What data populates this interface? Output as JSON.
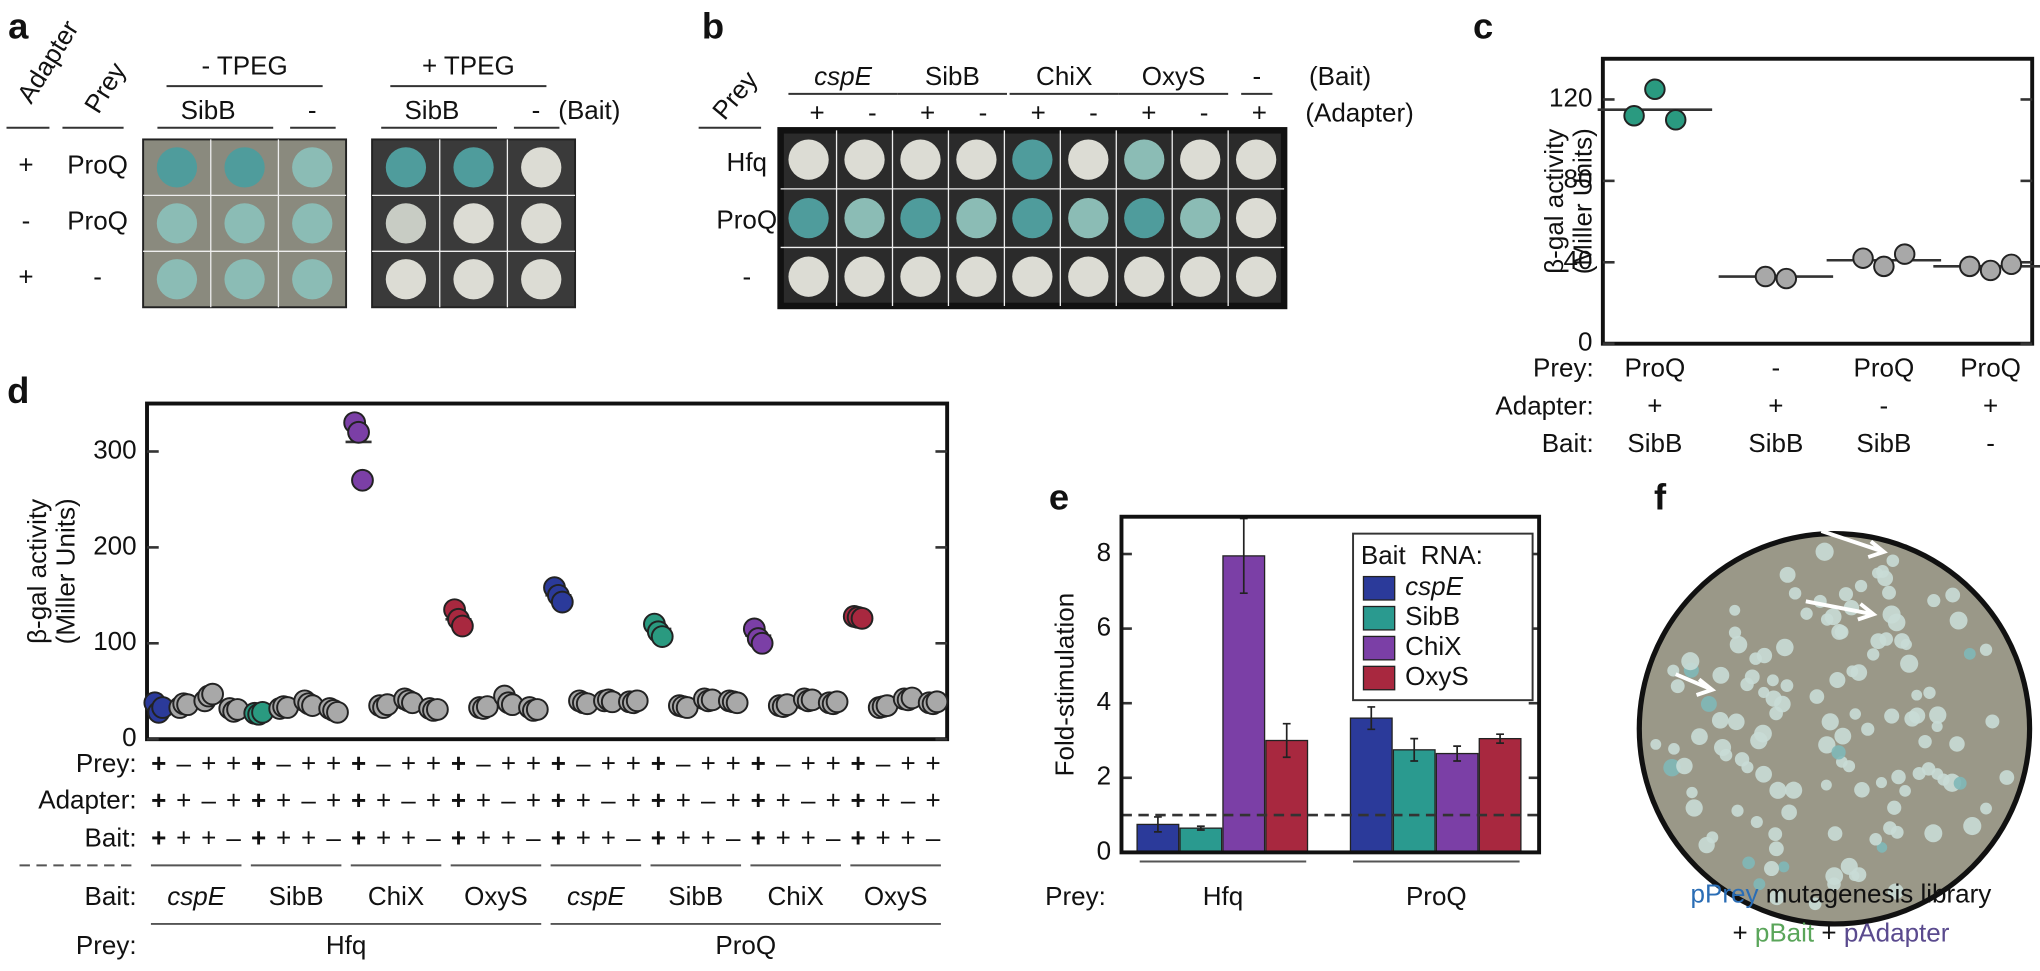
{
  "panel_labels": [
    "a",
    "b",
    "c",
    "d",
    "e",
    "f"
  ],
  "panel_a": {
    "adapter_label": "Adapter",
    "prey_label": "Prey",
    "plates": [
      {
        "title": "- TPEG",
        "baits": [
          "SibB",
          "-"
        ]
      },
      {
        "title": "+ TPEG",
        "baits": [
          "SibB",
          "-"
        ]
      }
    ],
    "bait_label": "(Bait)",
    "rows": [
      {
        "adapter": "+",
        "prey": "ProQ"
      },
      {
        "adapter": "-",
        "prey": "ProQ"
      },
      {
        "adapter": "+",
        "prey": "-"
      }
    ]
  },
  "panel_b": {
    "prey_label": "Prey",
    "baits": [
      "cspE",
      "SibB",
      "ChiX",
      "OxyS",
      "-"
    ],
    "bait_label": "(Bait)",
    "adapters": [
      "+",
      "-",
      "+",
      "-",
      "+",
      "-",
      "+",
      "-",
      "+"
    ],
    "adapter_label": "(Adapter)",
    "rows": [
      "Hfq",
      "ProQ",
      "-"
    ]
  },
  "chart_data": [
    {
      "type": "dot",
      "y_label": "β-gal activity",
      "y_label_2": "(Miller Units)",
      "ylim": [
        0,
        140
      ],
      "yticks": [
        0,
        40,
        80,
        120
      ],
      "row_labels": [
        "Prey:",
        "Adapter:",
        "Bait:"
      ],
      "conditions": [
        [
          "ProQ",
          "+",
          "SibB"
        ],
        [
          "-",
          "+",
          "SibB"
        ],
        [
          "ProQ",
          "-",
          "SibB"
        ],
        [
          "ProQ",
          "+",
          "-"
        ]
      ],
      "groups": [
        {
          "color": "#2a9a80",
          "values": [
            112,
            125,
            110
          ],
          "mean": 115
        },
        {
          "color": "#a8a8a8",
          "values": [
            33,
            32
          ],
          "mean": 33
        },
        {
          "color": "#a8a8a8",
          "values": [
            42,
            38,
            44
          ],
          "mean": 41
        },
        {
          "color": "#a8a8a8",
          "values": [
            38,
            36,
            39
          ],
          "mean": 38
        }
      ]
    },
    {
      "type": "dot",
      "y_label": "β-gal activity",
      "y_label_2": "(Miller Units)",
      "ylim": [
        0,
        350
      ],
      "yticks": [
        0,
        100,
        200,
        300
      ],
      "row_labels": [
        "Prey:",
        "Adapter:",
        "Bait:"
      ],
      "signs": [
        [
          "+",
          "–",
          "+",
          "+",
          "+",
          "–",
          "+",
          "+",
          "+",
          "–",
          "+",
          "+",
          "+",
          "–",
          "+",
          "+",
          "+",
          "–",
          "+",
          "+",
          "+",
          "–",
          "+",
          "+",
          "+",
          "–",
          "+",
          "+",
          "+",
          "–",
          "+",
          "+"
        ],
        [
          "+",
          "+",
          "–",
          "+",
          "+",
          "+",
          "–",
          "+",
          "+",
          "+",
          "–",
          "+",
          "+",
          "+",
          "–",
          "+",
          "+",
          "+",
          "–",
          "+",
          "+",
          "+",
          "–",
          "+",
          "+",
          "+",
          "–",
          "+",
          "+",
          "+",
          "–",
          "+"
        ],
        [
          "+",
          "+",
          "+",
          "–",
          "+",
          "+",
          "+",
          "–",
          "+",
          "+",
          "+",
          "–",
          "+",
          "+",
          "+",
          "–",
          "+",
          "+",
          "+",
          "–",
          "+",
          "+",
          "+",
          "–",
          "+",
          "+",
          "+",
          "–",
          "+",
          "+",
          "+",
          "–"
        ]
      ],
      "bait_row_label": "Bait:",
      "prey_row_label": "Prey:",
      "preys": [
        "Hfq",
        "ProQ"
      ],
      "groups": [
        {
          "bait": "cspE",
          "color": "#2b3a9a",
          "columns": [
            {
              "values": [
                38,
                28,
                33
              ],
              "mean": 33
            },
            {
              "values": [
                33,
                37,
                36
              ],
              "mean": 35
            },
            {
              "values": [
                40,
                45,
                47
              ],
              "mean": 44
            },
            {
              "values": [
                32,
                29,
                31
              ],
              "mean": 31
            }
          ]
        },
        {
          "bait": "SibB",
          "color": "#2a9a80",
          "columns": [
            {
              "values": [
                27,
                26,
                28
              ],
              "mean": 27
            },
            {
              "values": [
                32,
                34,
                33
              ],
              "mean": 33
            },
            {
              "values": [
                40,
                37,
                35
              ],
              "mean": 37
            },
            {
              "values": [
                32,
                30,
                28
              ],
              "mean": 30
            }
          ]
        },
        {
          "bait": "ChiX",
          "color": "#7b3fa6",
          "columns": [
            {
              "values": [
                330,
                320,
                270
              ],
              "mean": 310
            },
            {
              "values": [
                35,
                33,
                36
              ],
              "mean": 35
            },
            {
              "values": [
                42,
                40,
                38
              ],
              "mean": 40
            },
            {
              "values": [
                32,
                30,
                31
              ],
              "mean": 31
            }
          ]
        },
        {
          "bait": "OxyS",
          "color": "#a8283f",
          "columns": [
            {
              "values": [
                135,
                125,
                118
              ],
              "mean": 125
            },
            {
              "values": [
                33,
                32,
                34
              ],
              "mean": 33
            },
            {
              "values": [
                45,
                38,
                36
              ],
              "mean": 40
            },
            {
              "values": [
                33,
                30,
                31
              ],
              "mean": 31
            }
          ]
        },
        {
          "bait": "cspE",
          "color": "#2b3a9a",
          "columns": [
            {
              "values": [
                158,
                150,
                143
              ],
              "mean": 150
            },
            {
              "values": [
                40,
                38,
                37
              ],
              "mean": 38
            },
            {
              "values": [
                40,
                41,
                39
              ],
              "mean": 40
            },
            {
              "values": [
                39,
                38,
                40
              ],
              "mean": 39
            }
          ]
        },
        {
          "bait": "SibB",
          "color": "#2a9a80",
          "columns": [
            {
              "values": [
                120,
                112,
                107
              ],
              "mean": 115
            },
            {
              "values": [
                35,
                34,
                33
              ],
              "mean": 34
            },
            {
              "values": [
                42,
                40,
                41
              ],
              "mean": 41
            },
            {
              "values": [
                40,
                39,
                38
              ],
              "mean": 39
            }
          ]
        },
        {
          "bait": "ChiX",
          "color": "#7b3fa6",
          "columns": [
            {
              "values": [
                115,
                105,
                100
              ],
              "mean": 108
            },
            {
              "values": [
                35,
                34,
                36
              ],
              "mean": 35
            },
            {
              "values": [
                42,
                40,
                41
              ],
              "mean": 41
            },
            {
              "values": [
                38,
                37,
                39
              ],
              "mean": 38
            }
          ]
        },
        {
          "bait": "OxyS",
          "color": "#a8283f",
          "columns": [
            {
              "values": [
                128,
                127,
                126
              ],
              "mean": 127
            },
            {
              "values": [
                33,
                34,
                35
              ],
              "mean": 34
            },
            {
              "values": [
                42,
                41,
                43
              ],
              "mean": 42
            },
            {
              "values": [
                38,
                37,
                39
              ],
              "mean": 38
            }
          ]
        }
      ]
    },
    {
      "type": "bar",
      "y_label": "Fold-stimulation",
      "x_label": "Prey:",
      "categories": [
        "Hfq",
        "ProQ"
      ],
      "ylim": [
        0,
        9
      ],
      "yticks": [
        0,
        2,
        4,
        6,
        8
      ],
      "reference_line": 1,
      "legend_title_1": "Bait",
      "legend_title_2": "RNA:",
      "series": [
        {
          "name": "cspE",
          "color": "#2b3a9a",
          "values": [
            0.75,
            3.6
          ],
          "errors": [
            0.2,
            0.3
          ]
        },
        {
          "name": "SibB",
          "color": "#2a9a8f",
          "values": [
            0.65,
            2.75
          ],
          "errors": [
            0.05,
            0.3
          ]
        },
        {
          "name": "ChiX",
          "color": "#7b3fa6",
          "values": [
            7.95,
            2.65
          ],
          "errors": [
            1.0,
            0.2
          ]
        },
        {
          "name": "OxyS",
          "color": "#a8283f",
          "values": [
            3.0,
            3.05
          ],
          "errors": [
            0.45,
            0.12
          ]
        }
      ]
    }
  ],
  "panel_f": {
    "caption_1": [
      "pPrey",
      " mutagenesis library"
    ],
    "caption_2": [
      "+ ",
      "pBait",
      " + ",
      "pAdapter"
    ]
  }
}
